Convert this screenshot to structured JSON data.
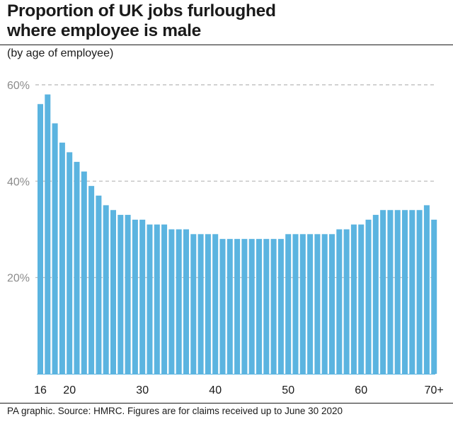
{
  "header": {
    "title_line1": "Proportion of UK jobs furloughed",
    "title_line2": "where employee is male",
    "subtitle": "(by age of employee)"
  },
  "footer": {
    "source": "PA graphic. Source: HMRC. Figures are for claims received up to June 30 2020"
  },
  "colors": {
    "bar": "#5bb4e0",
    "grid": "#b8b8b8",
    "text": "#1a1a1a"
  },
  "chart_data": {
    "type": "bar",
    "title": "Proportion of UK jobs furloughed where employee is male",
    "subtitle": "(by age of employee)",
    "xlabel": "",
    "ylabel": "",
    "y_unit": "%",
    "ylim": [
      0,
      60
    ],
    "yticks": [
      20,
      40,
      60
    ],
    "ytick_labels": [
      "20%",
      "40%",
      "60%"
    ],
    "grid": "horizontal dashed",
    "legend": "none",
    "x_tick_labels": [
      {
        "age": 16,
        "label": "16"
      },
      {
        "age": 20,
        "label": "20"
      },
      {
        "age": 30,
        "label": "30"
      },
      {
        "age": 40,
        "label": "40"
      },
      {
        "age": 50,
        "label": "50"
      },
      {
        "age": 60,
        "label": "60"
      },
      {
        "age": 70,
        "label": "70+"
      }
    ],
    "categories": [
      "16",
      "17",
      "18",
      "19",
      "20",
      "21",
      "22",
      "23",
      "24",
      "25",
      "26",
      "27",
      "28",
      "29",
      "30",
      "31",
      "32",
      "33",
      "34",
      "35",
      "36",
      "37",
      "38",
      "39",
      "40",
      "41",
      "42",
      "43",
      "44",
      "45",
      "46",
      "47",
      "48",
      "49",
      "50",
      "51",
      "52",
      "53",
      "54",
      "55",
      "56",
      "57",
      "58",
      "59",
      "60",
      "61",
      "62",
      "63",
      "64",
      "65",
      "66",
      "67",
      "68",
      "69",
      "70+"
    ],
    "values": [
      56,
      58,
      52,
      48,
      46,
      44,
      42,
      39,
      37,
      35,
      34,
      33,
      33,
      32,
      32,
      31,
      31,
      31,
      30,
      30,
      30,
      29,
      29,
      29,
      29,
      28,
      28,
      28,
      28,
      28,
      28,
      28,
      28,
      28,
      29,
      29,
      29,
      29,
      29,
      29,
      29,
      30,
      30,
      31,
      31,
      32,
      33,
      34,
      34,
      34,
      34,
      34,
      34,
      35,
      32
    ]
  }
}
